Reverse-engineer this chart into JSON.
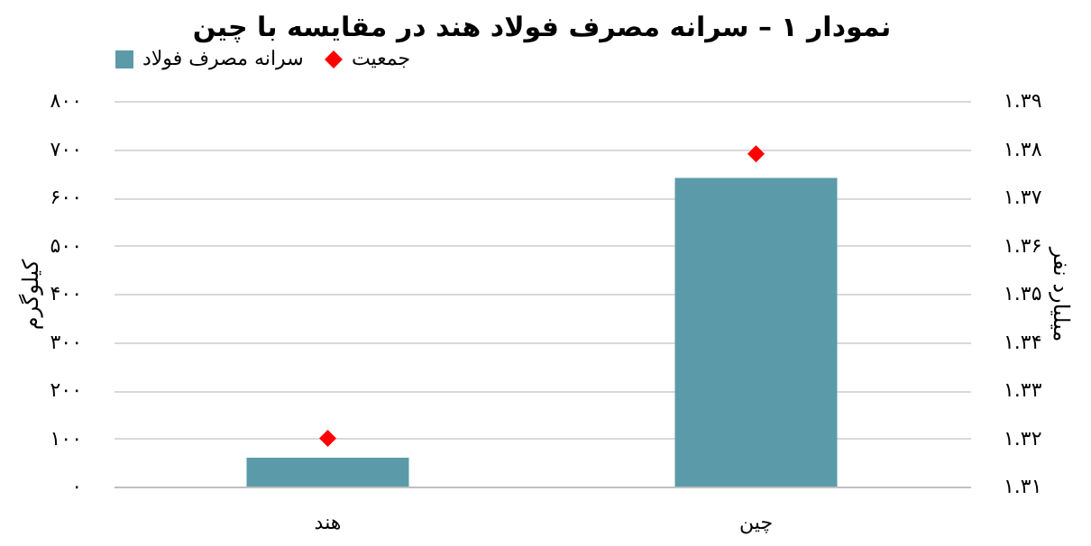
{
  "chart_data": {
    "type": "bar",
    "title": "نمودار ۱ – سرانه مصرف فولاد هند در مقایسه با چین",
    "categories": [
      "هند",
      "چین"
    ],
    "series": [
      {
        "name": "سرانه مصرف فولاد",
        "color": "#5b9aa9",
        "values": [
          60,
          640
        ]
      },
      {
        "name": "جمعیت",
        "type": "scatter",
        "axis": "y2",
        "marker": "diamond",
        "color": "#ff0000",
        "values": [
          1.32,
          1.379
        ]
      }
    ],
    "ylabel": "کیلوگرم",
    "y2label": "میلیارد نفر",
    "ylim": [
      0,
      800
    ],
    "yticks": [
      {
        "value": 0,
        "label": "۰"
      },
      {
        "value": 100,
        "label": "۱۰۰"
      },
      {
        "value": 200,
        "label": "۲۰۰"
      },
      {
        "value": 300,
        "label": "۳۰۰"
      },
      {
        "value": 400,
        "label": "۴۰۰"
      },
      {
        "value": 500,
        "label": "۵۰۰"
      },
      {
        "value": 600,
        "label": "۶۰۰"
      },
      {
        "value": 700,
        "label": "۷۰۰"
      },
      {
        "value": 800,
        "label": "۸۰۰"
      }
    ],
    "y2lim": [
      1.31,
      1.39
    ],
    "y2ticks": [
      {
        "value": 1.31,
        "label": "۱.۳۱"
      },
      {
        "value": 1.32,
        "label": "۱.۳۲"
      },
      {
        "value": 1.33,
        "label": "۱.۳۳"
      },
      {
        "value": 1.34,
        "label": "۱.۳۴"
      },
      {
        "value": 1.35,
        "label": "۱.۳۵"
      },
      {
        "value": 1.36,
        "label": "۱.۳۶"
      },
      {
        "value": 1.37,
        "label": "۱.۳۷"
      },
      {
        "value": 1.38,
        "label": "۱.۳۸"
      },
      {
        "value": 1.39,
        "label": "۱.۳۹"
      }
    ],
    "grid": "y",
    "legend": "top"
  }
}
